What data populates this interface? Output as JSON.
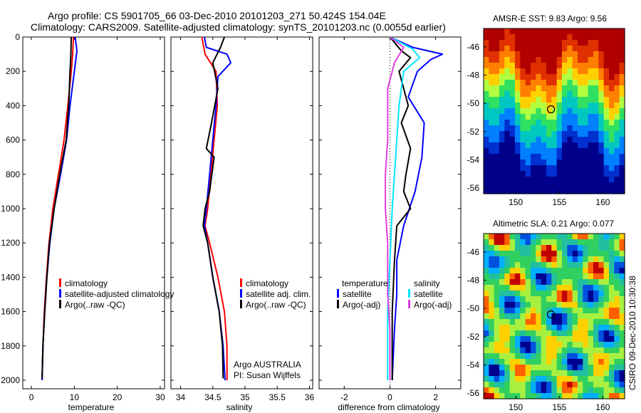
{
  "header": {
    "line1": "Argo profile: CS 5901705_66 03-Dec-2010 20101203_271 50.424S 154.04E",
    "line2": "Climatology: CARS2009. Satellite-adjusted climatology: synTS_20101203.nc (0.0055d earlier)"
  },
  "colors": {
    "red": "#ff0000",
    "blue": "#0000ff",
    "black": "#000000",
    "cyan": "#00e5ff",
    "magenta": "#e040e0"
  },
  "chart_data": [
    {
      "type": "line",
      "xlabel": "temperature",
      "ylim": [
        2050,
        0
      ],
      "xlim": [
        -2,
        31
      ],
      "yticks": [
        0,
        200,
        400,
        600,
        800,
        1000,
        1200,
        1400,
        1600,
        1800,
        2000
      ],
      "xticks": [
        0,
        10,
        20,
        30
      ],
      "legend": [
        "climatology",
        "satellite-adjusted climatology",
        "Argo(..raw -QC)"
      ],
      "series": [
        {
          "name": "climatology",
          "color": "red",
          "points": [
            [
              9.8,
              0
            ],
            [
              9.6,
              100
            ],
            [
              9.3,
              200
            ],
            [
              8.5,
              400
            ],
            [
              7.6,
              600
            ],
            [
              6.3,
              800
            ],
            [
              5.0,
              1000
            ],
            [
              4.1,
              1200
            ],
            [
              3.5,
              1400
            ],
            [
              3.0,
              1600
            ],
            [
              2.7,
              1800
            ],
            [
              2.5,
              2000
            ]
          ]
        },
        {
          "name": "satellite-adjusted climatology",
          "color": "blue",
          "points": [
            [
              10.2,
              0
            ],
            [
              10.6,
              80
            ],
            [
              10.0,
              200
            ],
            [
              9.0,
              400
            ],
            [
              8.2,
              600
            ],
            [
              6.8,
              800
            ],
            [
              5.3,
              1000
            ],
            [
              4.3,
              1200
            ],
            [
              3.6,
              1400
            ],
            [
              3.1,
              1600
            ],
            [
              2.7,
              1800
            ],
            [
              2.5,
              2000
            ]
          ]
        },
        {
          "name": "Argo(..raw -QC)",
          "color": "black",
          "points": [
            [
              9.3,
              0
            ],
            [
              9.2,
              100
            ],
            [
              9.0,
              200
            ],
            [
              8.7,
              400
            ],
            [
              8.1,
              600
            ],
            [
              6.6,
              800
            ],
            [
              5.3,
              1000
            ],
            [
              4.2,
              1200
            ],
            [
              3.6,
              1400
            ],
            [
              3.1,
              1600
            ],
            [
              2.7,
              1800
            ],
            [
              2.5,
              1990
            ]
          ]
        }
      ]
    },
    {
      "type": "line",
      "xlabel": "salinity",
      "ylim": [
        2050,
        0
      ],
      "xlim": [
        33.85,
        36.05
      ],
      "xticks": [
        34,
        34.5,
        35,
        35.5,
        36
      ],
      "legend": [
        "climatology",
        "satellite adj. clim.",
        "Argo(..raw -QC)"
      ],
      "series": [
        {
          "name": "climatology",
          "color": "red",
          "points": [
            [
              34.33,
              0
            ],
            [
              34.38,
              100
            ],
            [
              34.55,
              200
            ],
            [
              34.57,
              400
            ],
            [
              34.52,
              600
            ],
            [
              34.47,
              800
            ],
            [
              34.42,
              1000
            ],
            [
              34.38,
              1100
            ],
            [
              34.45,
              1200
            ],
            [
              34.58,
              1400
            ],
            [
              34.68,
              1600
            ],
            [
              34.72,
              1800
            ],
            [
              34.72,
              2000
            ]
          ]
        },
        {
          "name": "satellite adj. clim.",
          "color": "blue",
          "points": [
            [
              34.37,
              0
            ],
            [
              34.4,
              60
            ],
            [
              34.72,
              100
            ],
            [
              34.78,
              150
            ],
            [
              34.58,
              230
            ],
            [
              34.55,
              400
            ],
            [
              34.5,
              600
            ],
            [
              34.45,
              800
            ],
            [
              34.4,
              1000
            ],
            [
              34.37,
              1100
            ],
            [
              34.42,
              1200
            ],
            [
              34.5,
              1400
            ],
            [
              34.6,
              1600
            ],
            [
              34.66,
              1800
            ],
            [
              34.69,
              2000
            ]
          ]
        },
        {
          "name": "Argo(..raw -QC)",
          "color": "black",
          "points": [
            [
              34.68,
              0
            ],
            [
              34.62,
              60
            ],
            [
              34.5,
              150
            ],
            [
              34.58,
              300
            ],
            [
              34.48,
              500
            ],
            [
              34.4,
              650
            ],
            [
              34.52,
              700
            ],
            [
              34.45,
              900
            ],
            [
              34.38,
              1000
            ],
            [
              34.35,
              1100
            ],
            [
              34.42,
              1200
            ],
            [
              34.5,
              1400
            ],
            [
              34.6,
              1600
            ],
            [
              34.65,
              1800
            ],
            [
              34.66,
              1990
            ]
          ]
        }
      ]
    },
    {
      "type": "line",
      "xlabel": "difference from climatology",
      "ylim": [
        2050,
        0
      ],
      "xlim": [
        -3.1,
        3.1
      ],
      "xticks": [
        -2,
        0,
        2
      ],
      "legend_groups": [
        {
          "title": "temperature",
          "items": [
            "satellite",
            "Argo(-adj)"
          ]
        },
        {
          "title": "salinity",
          "items": [
            "satellite",
            "Argo(-adj)"
          ]
        }
      ],
      "series": [
        {
          "name": "temperature satellite",
          "color": "blue",
          "points": [
            [
              0.0,
              0
            ],
            [
              1.0,
              60
            ],
            [
              2.3,
              100
            ],
            [
              1.8,
              130
            ],
            [
              1.2,
              200
            ],
            [
              0.8,
              350
            ],
            [
              1.5,
              500
            ],
            [
              1.4,
              700
            ],
            [
              1.1,
              900
            ],
            [
              0.6,
              1100
            ],
            [
              0.3,
              1300
            ],
            [
              0.3,
              1500
            ],
            [
              0.2,
              1700
            ],
            [
              0.1,
              2000
            ]
          ]
        },
        {
          "name": "temperature Argo(-adj)",
          "color": "black",
          "points": [
            [
              0.0,
              0
            ],
            [
              0.5,
              80
            ],
            [
              0.9,
              120
            ],
            [
              0.4,
              200
            ],
            [
              0.6,
              300
            ],
            [
              0.8,
              400
            ],
            [
              0.5,
              500
            ],
            [
              0.9,
              650
            ],
            [
              0.7,
              800
            ],
            [
              0.6,
              900
            ],
            [
              0.9,
              1000
            ],
            [
              0.3,
              1100
            ],
            [
              0.2,
              1300
            ],
            [
              0.1,
              1600
            ],
            [
              0.1,
              2000
            ]
          ]
        },
        {
          "name": "salinity satellite",
          "color": "cyan",
          "points": [
            [
              0.0,
              0
            ],
            [
              1.0,
              70
            ],
            [
              1.3,
              120
            ],
            [
              0.6,
              200
            ],
            [
              0.4,
              400
            ],
            [
              0.3,
              600
            ],
            [
              0.2,
              800
            ],
            [
              0.1,
              1000
            ],
            [
              0.0,
              1300
            ],
            [
              -0.1,
              1600
            ],
            [
              -0.1,
              2000
            ]
          ]
        },
        {
          "name": "salinity Argo(-adj)",
          "color": "magenta",
          "points": [
            [
              0.0,
              0
            ],
            [
              0.6,
              60
            ],
            [
              0.2,
              150
            ],
            [
              -0.1,
              300
            ],
            [
              -0.1,
              600
            ],
            [
              -0.2,
              800
            ],
            [
              -0.2,
              1000
            ],
            [
              -0.1,
              1200
            ],
            [
              -0.1,
              1500
            ],
            [
              0.0,
              1700
            ],
            [
              0.0,
              2000
            ]
          ]
        }
      ]
    },
    {
      "type": "heatmap",
      "title": "AMSR-E SST: 9.83 Argo: 9.56",
      "xlim": [
        146.3,
        162.5
      ],
      "ylim": [
        -56.4,
        -44.7
      ],
      "xticks": [
        150,
        155,
        160
      ],
      "yticks": [
        -46,
        -48,
        -50,
        -52,
        -54,
        -56
      ],
      "marker": {
        "lon": 154.04,
        "lat": -50.424
      }
    },
    {
      "type": "heatmap",
      "title": "Altimetric SLA: 0.21 Argo: 0.077",
      "xlim": [
        146.3,
        162.5
      ],
      "ylim": [
        -56.4,
        -44.7
      ],
      "xticks": [
        150,
        155,
        160
      ],
      "yticks": [
        -46,
        -48,
        -50,
        -52,
        -54,
        -56
      ],
      "marker": {
        "lon": 154.04,
        "lat": -50.424
      }
    }
  ],
  "panels": {
    "p1": {
      "xlabel": "temperature",
      "legend": [
        "climatology",
        "satellite-adjusted climatology",
        "Argo(..raw -QC)"
      ]
    },
    "p2": {
      "xlabel": "salinity",
      "legend": [
        "climatology",
        "satellite adj. clim.",
        "Argo(..raw -QC)"
      ],
      "note1": "Argo AUSTRALIA",
      "note2": "PI: Susan Wijffels"
    },
    "p3": {
      "xlabel": "difference from climatology",
      "t_title": "temperature",
      "s_title": "salinity",
      "sat": "satellite",
      "argo": "Argo(-adj)"
    },
    "map1": {
      "title": "AMSR-E SST: 9.83 Argo: 9.56"
    },
    "map2": {
      "title": "Altimetric SLA: 0.21 Argo: 0.077"
    },
    "credit": "CSIRO 09-Dec-2010 10:30:38"
  }
}
